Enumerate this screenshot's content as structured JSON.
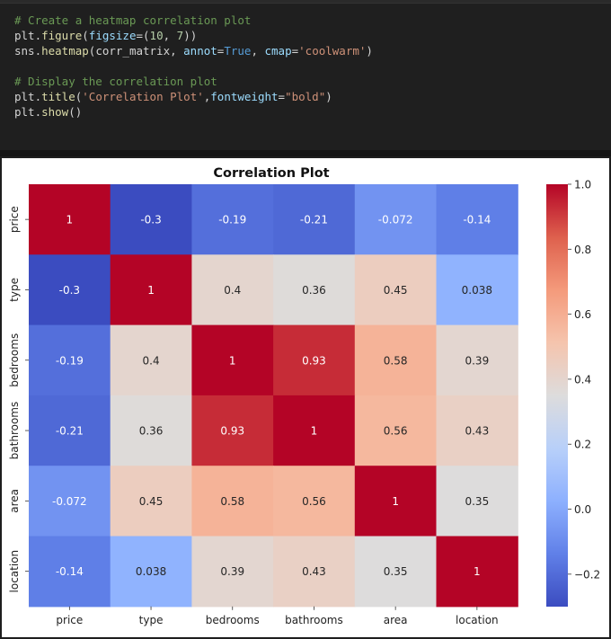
{
  "code": {
    "lines": [
      [
        {
          "t": "# Create a heatmap correlation plot",
          "c": "cmt"
        }
      ],
      [
        {
          "t": "plt",
          "c": "var"
        },
        {
          "t": ".",
          "c": "dot"
        },
        {
          "t": "figure",
          "c": "fn"
        },
        {
          "t": "(",
          "c": "var"
        },
        {
          "t": "figsize",
          "c": "kw"
        },
        {
          "t": "=(",
          "c": "var"
        },
        {
          "t": "10",
          "c": "num"
        },
        {
          "t": ", ",
          "c": "var"
        },
        {
          "t": "7",
          "c": "num"
        },
        {
          "t": "))",
          "c": "var"
        }
      ],
      [
        {
          "t": "sns",
          "c": "var"
        },
        {
          "t": ".",
          "c": "dot"
        },
        {
          "t": "heatmap",
          "c": "fn"
        },
        {
          "t": "(corr_matrix, ",
          "c": "var"
        },
        {
          "t": "annot",
          "c": "kw"
        },
        {
          "t": "=",
          "c": "var"
        },
        {
          "t": "True",
          "c": "bool"
        },
        {
          "t": ", ",
          "c": "var"
        },
        {
          "t": "cmap",
          "c": "kw"
        },
        {
          "t": "=",
          "c": "var"
        },
        {
          "t": "'coolwarm'",
          "c": "str"
        },
        {
          "t": ")",
          "c": "var"
        }
      ],
      [],
      [
        {
          "t": "# Display the correlation plot",
          "c": "cmt"
        }
      ],
      [
        {
          "t": "plt",
          "c": "var"
        },
        {
          "t": ".",
          "c": "dot"
        },
        {
          "t": "title",
          "c": "fn"
        },
        {
          "t": "(",
          "c": "var"
        },
        {
          "t": "'Correlation Plot'",
          "c": "str"
        },
        {
          "t": ",",
          "c": "var"
        },
        {
          "t": "fontweight",
          "c": "kw"
        },
        {
          "t": "=",
          "c": "var"
        },
        {
          "t": "\"bold\"",
          "c": "str"
        },
        {
          "t": ")",
          "c": "var"
        }
      ],
      [
        {
          "t": "plt",
          "c": "var"
        },
        {
          "t": ".",
          "c": "dot"
        },
        {
          "t": "show",
          "c": "fn"
        },
        {
          "t": "()",
          "c": "var"
        }
      ]
    ],
    "colors": {
      "cmt": "#6a9955",
      "var": "#d4d4d4",
      "dot": "#d4d4d4",
      "fn": "#dcdcaa",
      "kw": "#9cdcfe",
      "num": "#b5cea8",
      "str": "#ce9178",
      "bool": "#569cd6"
    }
  },
  "chart_data": {
    "type": "heatmap",
    "title": "Correlation Plot",
    "colormap": "coolwarm",
    "labels": [
      "price",
      "type",
      "bedrooms",
      "bathrooms",
      "area",
      "location"
    ],
    "annotations": [
      [
        "1",
        "-0.3",
        "-0.19",
        "-0.21",
        "-0.072",
        "-0.14"
      ],
      [
        "-0.3",
        "1",
        "0.4",
        "0.36",
        "0.45",
        "0.038"
      ],
      [
        "-0.19",
        "0.4",
        "1",
        "0.93",
        "0.58",
        "0.39"
      ],
      [
        "-0.21",
        "0.36",
        "0.93",
        "1",
        "0.56",
        "0.43"
      ],
      [
        "-0.072",
        "0.45",
        "0.58",
        "0.56",
        "1",
        "0.35"
      ],
      [
        "-0.14",
        "0.038",
        "0.39",
        "0.43",
        "0.35",
        "1"
      ]
    ],
    "matrix": [
      [
        1,
        -0.3,
        -0.19,
        -0.21,
        -0.072,
        -0.14
      ],
      [
        -0.3,
        1,
        0.4,
        0.36,
        0.45,
        0.038
      ],
      [
        -0.19,
        0.4,
        1,
        0.93,
        0.58,
        0.39
      ],
      [
        -0.21,
        0.36,
        0.93,
        1,
        0.56,
        0.43
      ],
      [
        -0.072,
        0.45,
        0.58,
        0.56,
        1,
        0.35
      ],
      [
        -0.14,
        0.038,
        0.39,
        0.43,
        0.35,
        1
      ]
    ],
    "vmin": -0.3,
    "vmax": 1.0,
    "colorbar_ticks": [
      "1.0",
      "0.8",
      "0.6",
      "0.4",
      "0.2",
      "0.0",
      "−0.2"
    ],
    "colorbar_tick_values": [
      1.0,
      0.8,
      0.6,
      0.4,
      0.2,
      0.0,
      -0.2
    ],
    "grid": false,
    "legend": "colorbar-right"
  }
}
